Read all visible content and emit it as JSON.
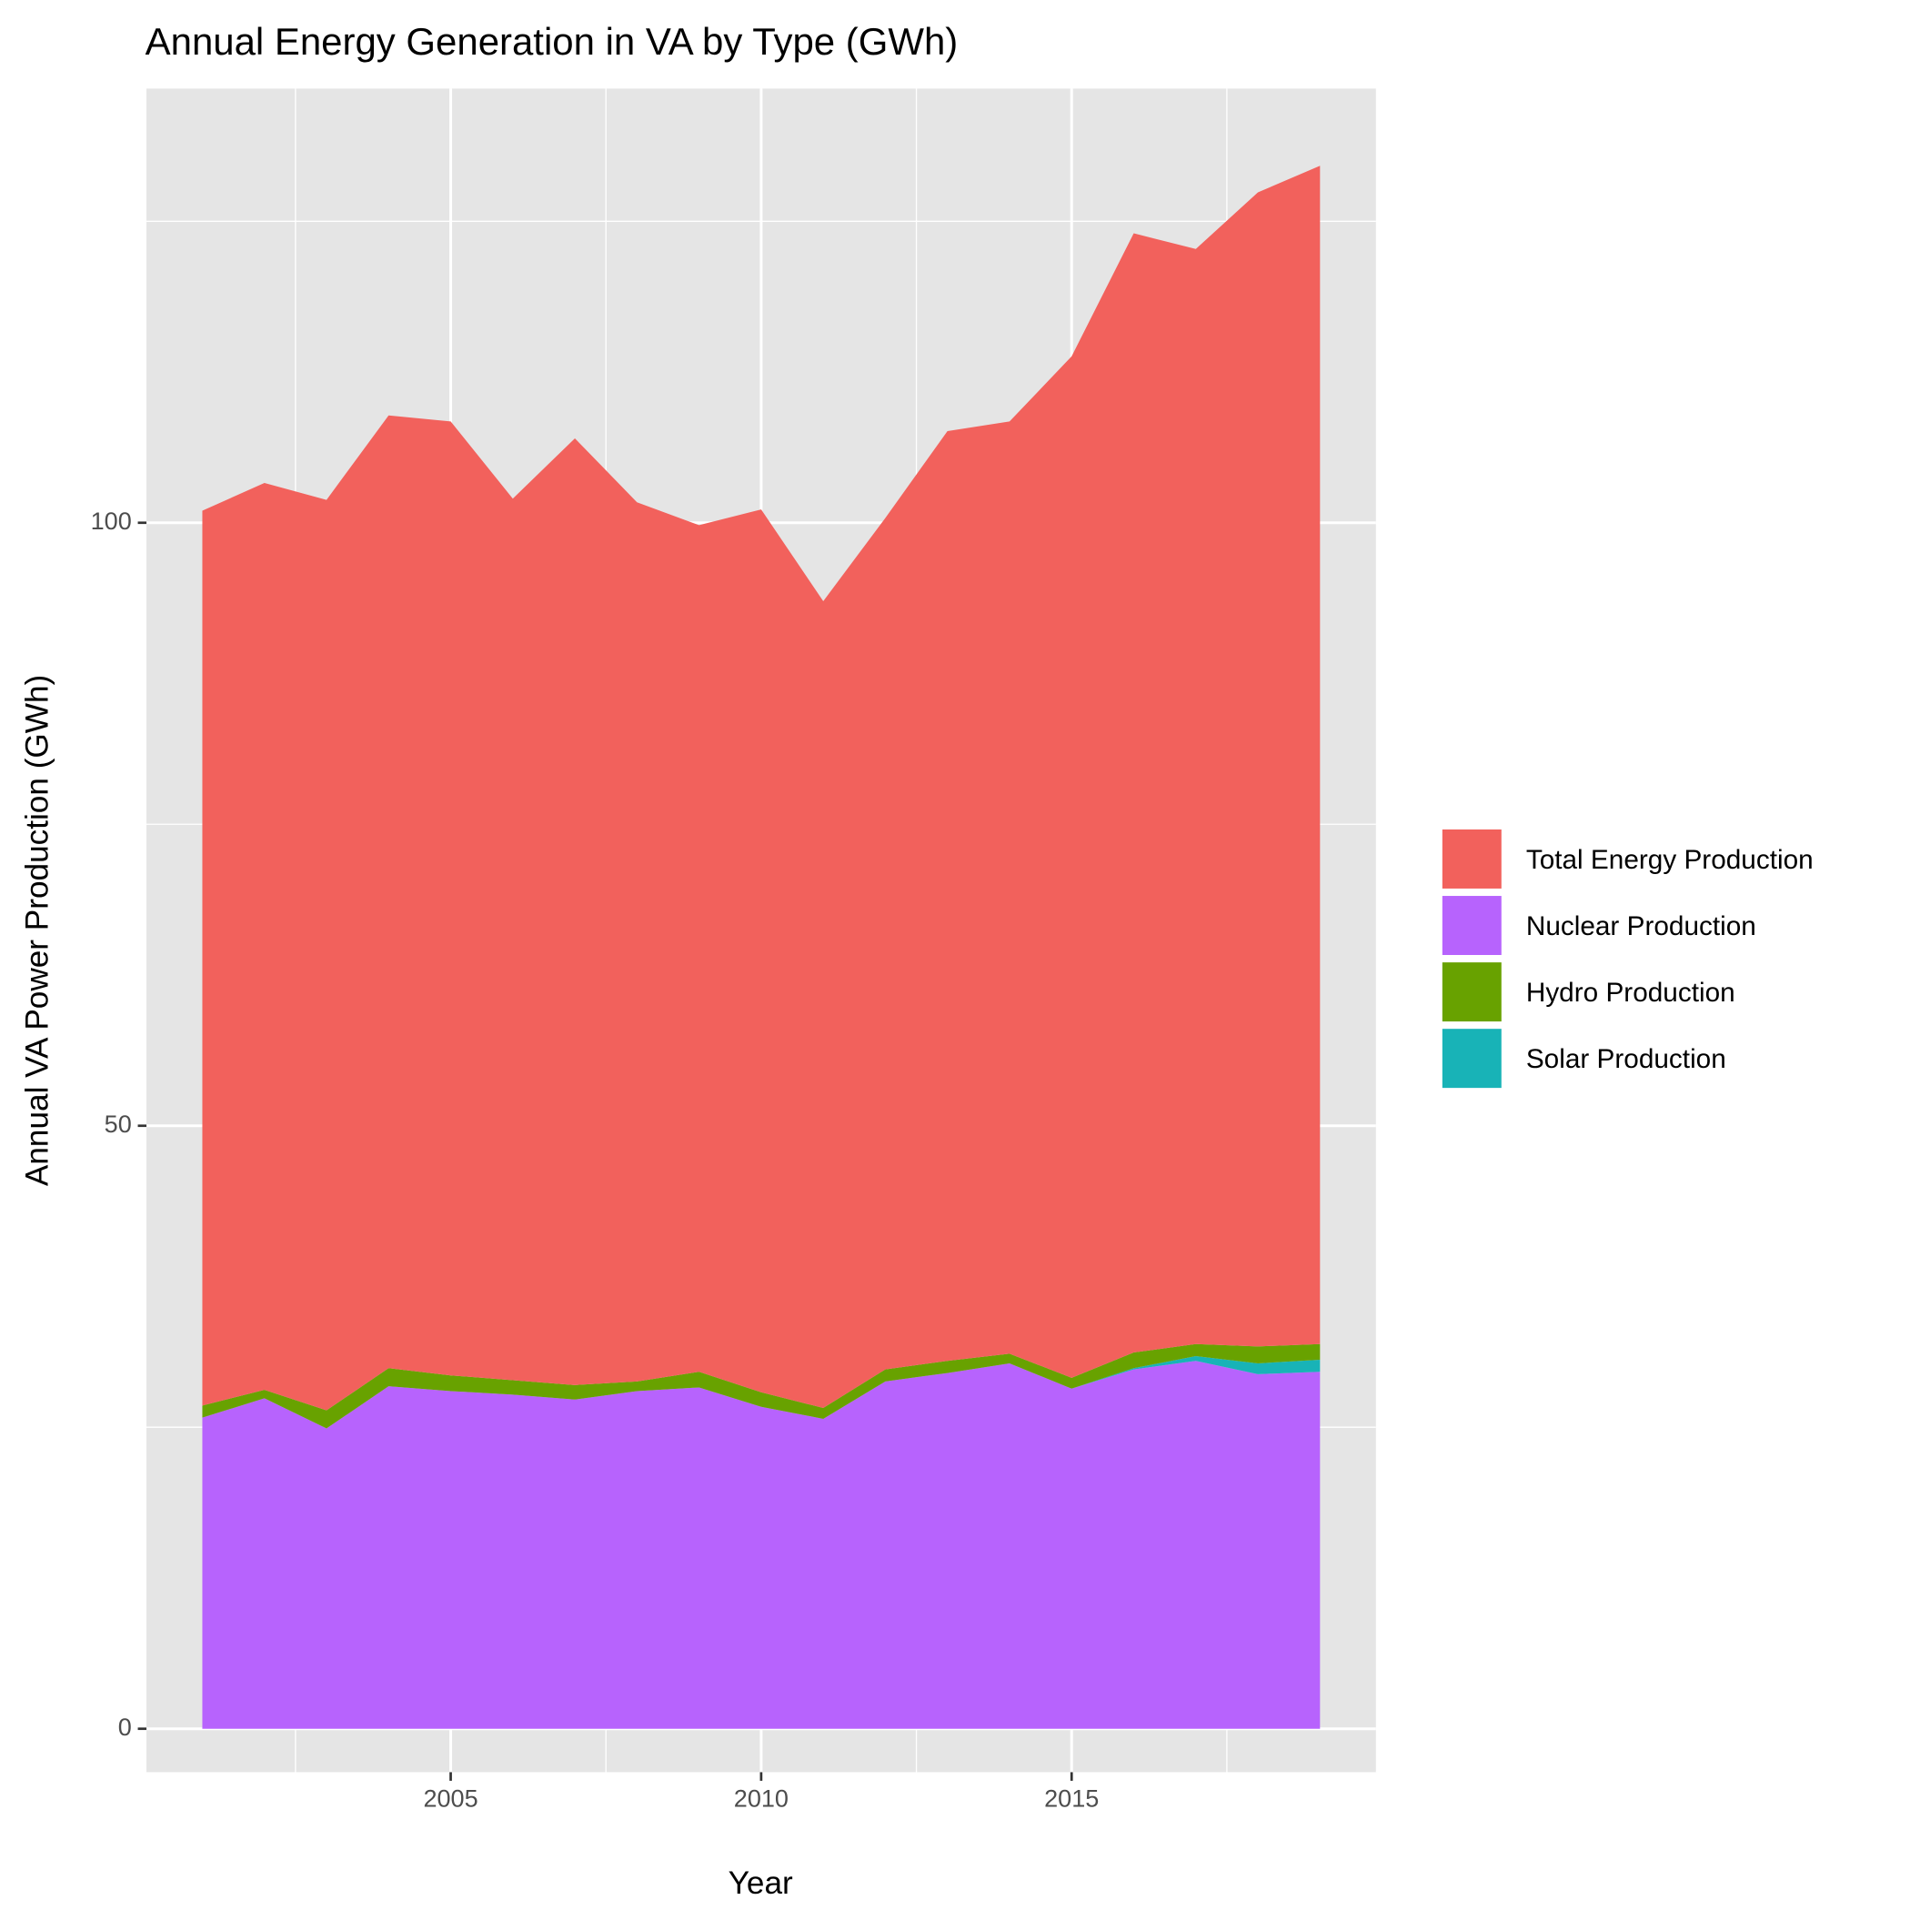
{
  "chart_data": {
    "type": "stacked_area",
    "title": "Annual Energy Generation in VA by Type (GWh)",
    "x_label": "Year",
    "y_label": "Annual VA Power Production (GWh)",
    "x": [
      2001,
      2002,
      2003,
      2004,
      2005,
      2006,
      2007,
      2008,
      2009,
      2010,
      2011,
      2012,
      2013,
      2014,
      2015,
      2016,
      2017,
      2018,
      2019
    ],
    "series": [
      {
        "name": "Total Energy Production",
        "color": "#f2615c",
        "values": [
          74.2,
          75.2,
          75.5,
          79.0,
          79.1,
          73.1,
          78.5,
          72.9,
          70.2,
          73.2,
          66.9,
          70.6,
          77.1,
          77.3,
          84.7,
          92.8,
          90.8,
          95.7,
          97.7
        ]
      },
      {
        "name": "Nuclear Production",
        "color": "#b763fd",
        "values": [
          25.8,
          27.4,
          24.9,
          28.4,
          28.0,
          27.7,
          27.3,
          28.0,
          28.3,
          26.7,
          25.7,
          28.8,
          29.5,
          30.3,
          28.2,
          29.8,
          30.5,
          29.4,
          29.6
        ]
      },
      {
        "name": "Hydro Production",
        "color": "#68a200",
        "values": [
          1.0,
          0.7,
          1.5,
          1.5,
          1.3,
          1.2,
          1.2,
          0.8,
          1.3,
          1.2,
          0.9,
          1.0,
          1.0,
          0.8,
          0.9,
          1.3,
          1.0,
          1.4,
          1.3
        ]
      },
      {
        "name": "Solar Production",
        "color": "#18b3b7",
        "values": [
          0,
          0,
          0,
          0,
          0,
          0,
          0,
          0,
          0,
          0,
          0,
          0,
          0,
          0,
          0,
          0.1,
          0.4,
          0.9,
          1.0
        ]
      }
    ],
    "xlim": [
      2000.1,
      2019.9
    ],
    "xticks": [
      2005,
      2010,
      2015
    ],
    "x_minor_grid": [
      2002.5,
      2007.5,
      2012.5,
      2017.5
    ],
    "ylim": [
      -3.6,
      136.0
    ],
    "yticks": [
      0,
      50,
      100
    ],
    "y_minor_grid": [
      25,
      75,
      125
    ],
    "grid": true,
    "legend": "right"
  }
}
